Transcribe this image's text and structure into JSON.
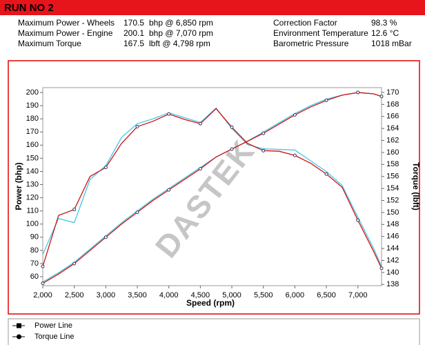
{
  "header": {
    "title": "RUN NO 2",
    "left_rows": [
      [
        "Maximum Power - Wheels",
        "170.5",
        "bhp @ 6,850 rpm"
      ],
      [
        "Maximum Power - Engine",
        "200.1",
        "bhp @ 7,070 rpm"
      ],
      [
        "Maximum Torque",
        "167.5",
        "lbft @ 4,798 rpm"
      ]
    ],
    "right_rows": [
      [
        "Correction Factor",
        "98.3 %"
      ],
      [
        "Environment Temperature",
        "12.6 °C"
      ],
      [
        "Barometric Pressure",
        "1018 mBar"
      ]
    ]
  },
  "chart_data": {
    "type": "line",
    "watermark": "DASTEK",
    "x_label": "Speed (rpm)",
    "y_label": "Power (bhp)",
    "y2_label": "Torque (lbft)",
    "x": [
      2000,
      2250,
      2500,
      2750,
      3000,
      3250,
      3500,
      3750,
      4000,
      4250,
      4500,
      4750,
      5000,
      5250,
      5500,
      5750,
      6000,
      6250,
      6500,
      6750,
      7000,
      7250,
      7375
    ],
    "xlim": [
      2000,
      7375
    ],
    "xticks": [
      {
        "value": 2000,
        "label": "2,000"
      },
      {
        "value": 2500,
        "label": "2,500"
      },
      {
        "value": 3000,
        "label": "3,000"
      },
      {
        "value": 3500,
        "label": "3,500"
      },
      {
        "value": 4000,
        "label": "4,000"
      },
      {
        "value": 4500,
        "label": "4,500"
      },
      {
        "value": 5000,
        "label": "5,000"
      },
      {
        "value": 5500,
        "label": "5,500"
      },
      {
        "value": 6000,
        "label": "6,000"
      },
      {
        "value": 6500,
        "label": "6,500"
      },
      {
        "value": 7000,
        "label": "7,000"
      }
    ],
    "ylim": [
      53.2,
      203.7
    ],
    "yticks": [
      60,
      70,
      80,
      90,
      100,
      110,
      120,
      130,
      140,
      150,
      160,
      170,
      180,
      190,
      200
    ],
    "y2lim": [
      137.8,
      170.8
    ],
    "y2ticks": [
      138,
      140,
      142,
      144,
      146,
      148,
      150,
      152,
      154,
      156,
      158,
      160,
      162,
      164,
      166,
      168,
      170
    ],
    "series": [
      {
        "name": "Power Line",
        "color": "#d01010",
        "marker": "square",
        "values": [
          55,
          62,
          70,
          80,
          90,
          100,
          109,
          118,
          126,
          134,
          142,
          151,
          157,
          163,
          169,
          176,
          183,
          189,
          194,
          198,
          200,
          199,
          197
        ]
      },
      {
        "name": "Torque Line",
        "color": "#d01010",
        "marker": "circle",
        "axis": "y2",
        "values": [
          141,
          149.5,
          150.5,
          156,
          157.5,
          161.5,
          164.3,
          165.2,
          166.4,
          165.5,
          164.8,
          167.3,
          164.2,
          161.5,
          160.3,
          160.2,
          159.5,
          158.2,
          156.4,
          154.2,
          148.7,
          143.5,
          140.7
        ]
      },
      {
        "color": "#40c8e8",
        "values": [
          56,
          63,
          71,
          81,
          91,
          101,
          110,
          119,
          127,
          135,
          143,
          151,
          157,
          163,
          170,
          177,
          184,
          190,
          195,
          198,
          200,
          199,
          197
        ]
      },
      {
        "color": "#40c8e8",
        "axis": "y2",
        "values": [
          143,
          149,
          148.3,
          155.5,
          157.8,
          162.5,
          164.8,
          165.6,
          166.6,
          165.8,
          165,
          167.4,
          164,
          161.3,
          160.6,
          160.5,
          160.4,
          158.6,
          156.8,
          154.5,
          149.2,
          144,
          141
        ]
      }
    ]
  }
}
